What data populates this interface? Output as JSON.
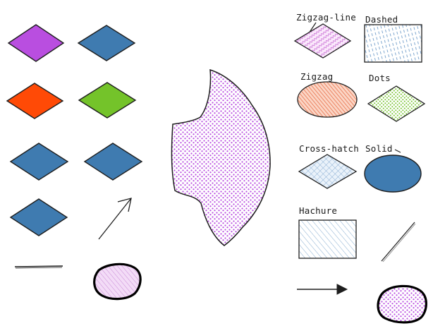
{
  "labels": {
    "zigzag_line": "Zigzag-line",
    "dashed": "Dashed",
    "zigzag": "Zigzag",
    "dots": "Dots",
    "cross_hatch": "Cross-hatch",
    "solid": "Solid",
    "hachure": "Hachure"
  },
  "colors": {
    "stroke": "#1e1e1e",
    "purple": "#b94ee0",
    "blue": "#3f7bb0",
    "red": "#ff4a06",
    "green": "#74c32a",
    "orange": "#f08a63",
    "light_blue": "#a9c8e0",
    "dots_purple": "#b94ee0"
  },
  "icons": {
    "arrow_diagonal": "arrow-up-right-icon",
    "arrow_right": "arrow-right-icon"
  }
}
